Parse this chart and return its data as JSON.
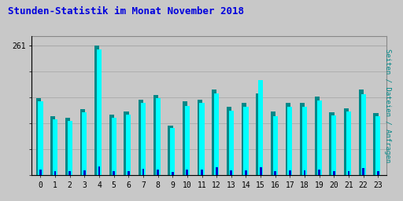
{
  "title": "Stunden-Statistik im Monat November 2018",
  "title_color": "#0000dd",
  "title_fontsize": 9,
  "ylabel": "Seiten / Dateien / Anfragen",
  "ylabel_color": "#008888",
  "ylabel_fontsize": 6.5,
  "background_color": "#c8c8c8",
  "plot_bg_color": "#c8c8c8",
  "grid_color": "#aaaaaa",
  "ytick_value": 261,
  "hours": [
    0,
    1,
    2,
    3,
    4,
    5,
    6,
    7,
    8,
    9,
    10,
    11,
    12,
    13,
    14,
    15,
    16,
    17,
    18,
    19,
    20,
    21,
    22,
    23
  ],
  "seiten": [
    155,
    118,
    115,
    133,
    261,
    122,
    128,
    152,
    162,
    100,
    148,
    152,
    172,
    137,
    145,
    165,
    128,
    145,
    145,
    158,
    127,
    135,
    172,
    125
  ],
  "dateien": [
    148,
    112,
    110,
    127,
    252,
    116,
    122,
    145,
    155,
    95,
    140,
    145,
    165,
    130,
    138,
    192,
    118,
    138,
    138,
    150,
    120,
    128,
    163,
    118
  ],
  "anfragen": [
    12,
    8,
    8,
    10,
    18,
    9,
    9,
    13,
    12,
    7,
    11,
    12,
    17,
    10,
    10,
    16,
    9,
    10,
    10,
    12,
    9,
    9,
    14,
    9
  ],
  "color_seiten": "#008888",
  "color_dateien": "#00ffff",
  "color_anfragen": "#0000cc",
  "bar_width": 0.3,
  "ylim": [
    0,
    280
  ],
  "xlim_left": -0.6,
  "xlim_right": 23.6
}
